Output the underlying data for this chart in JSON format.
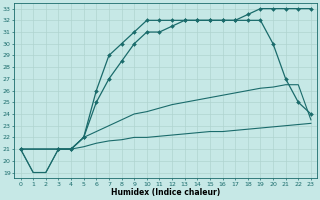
{
  "xlabel": "Humidex (Indice chaleur)",
  "bg_color": "#c6e8e6",
  "line_color": "#1a6b6b",
  "grid_color": "#b0d4d0",
  "xlim": [
    -0.5,
    23.5
  ],
  "ylim": [
    18.5,
    33.5
  ],
  "yticks": [
    19,
    20,
    21,
    22,
    23,
    24,
    25,
    26,
    27,
    28,
    29,
    30,
    31,
    32,
    33
  ],
  "xticks": [
    0,
    1,
    2,
    3,
    4,
    5,
    6,
    7,
    8,
    9,
    10,
    11,
    12,
    13,
    14,
    15,
    16,
    17,
    18,
    19,
    20,
    21,
    22,
    23
  ],
  "line1_x": [
    0,
    1,
    2,
    3,
    4,
    5,
    6,
    7,
    8,
    9,
    10,
    11,
    12,
    13,
    14,
    15,
    16,
    17,
    18,
    19,
    20,
    21,
    22,
    23
  ],
  "line1_y": [
    21,
    19,
    19,
    21,
    21,
    21.2,
    21.5,
    21.7,
    21.8,
    22,
    22,
    22.1,
    22.2,
    22.3,
    22.4,
    22.5,
    22.5,
    22.6,
    22.7,
    22.8,
    22.9,
    23,
    23.1,
    23.2
  ],
  "line2_x": [
    0,
    1,
    2,
    3,
    4,
    5,
    6,
    7,
    8,
    9,
    10,
    11,
    12,
    13,
    14,
    15,
    16,
    17,
    18,
    19,
    20,
    21,
    22,
    23
  ],
  "line2_y": [
    21,
    19,
    19,
    21,
    21,
    22,
    22.5,
    23,
    23.5,
    24,
    24.2,
    24.5,
    24.8,
    25,
    25.2,
    25.4,
    25.6,
    25.8,
    26,
    26.2,
    26.3,
    26.5,
    26.5,
    23.5
  ],
  "line3_x": [
    0,
    3,
    4,
    5,
    6,
    7,
    8,
    9,
    10,
    11,
    12,
    13,
    14,
    15,
    16,
    17,
    18,
    19,
    20,
    21,
    22,
    23
  ],
  "line3_y": [
    21,
    21,
    21,
    22,
    25,
    27,
    28.5,
    30,
    31,
    31,
    31.5,
    32,
    32,
    32,
    32,
    32,
    32,
    32,
    30,
    27,
    25,
    24
  ],
  "line4_x": [
    0,
    3,
    4,
    5,
    6,
    7,
    8,
    9,
    10,
    11,
    12,
    13,
    14,
    15,
    16,
    17,
    18,
    19,
    20,
    21,
    22,
    23
  ],
  "line4_y": [
    21,
    21,
    21,
    22,
    26,
    29,
    30,
    31,
    32,
    32,
    32,
    32,
    32,
    32,
    32,
    32,
    32.5,
    33,
    33,
    33,
    33,
    33
  ]
}
